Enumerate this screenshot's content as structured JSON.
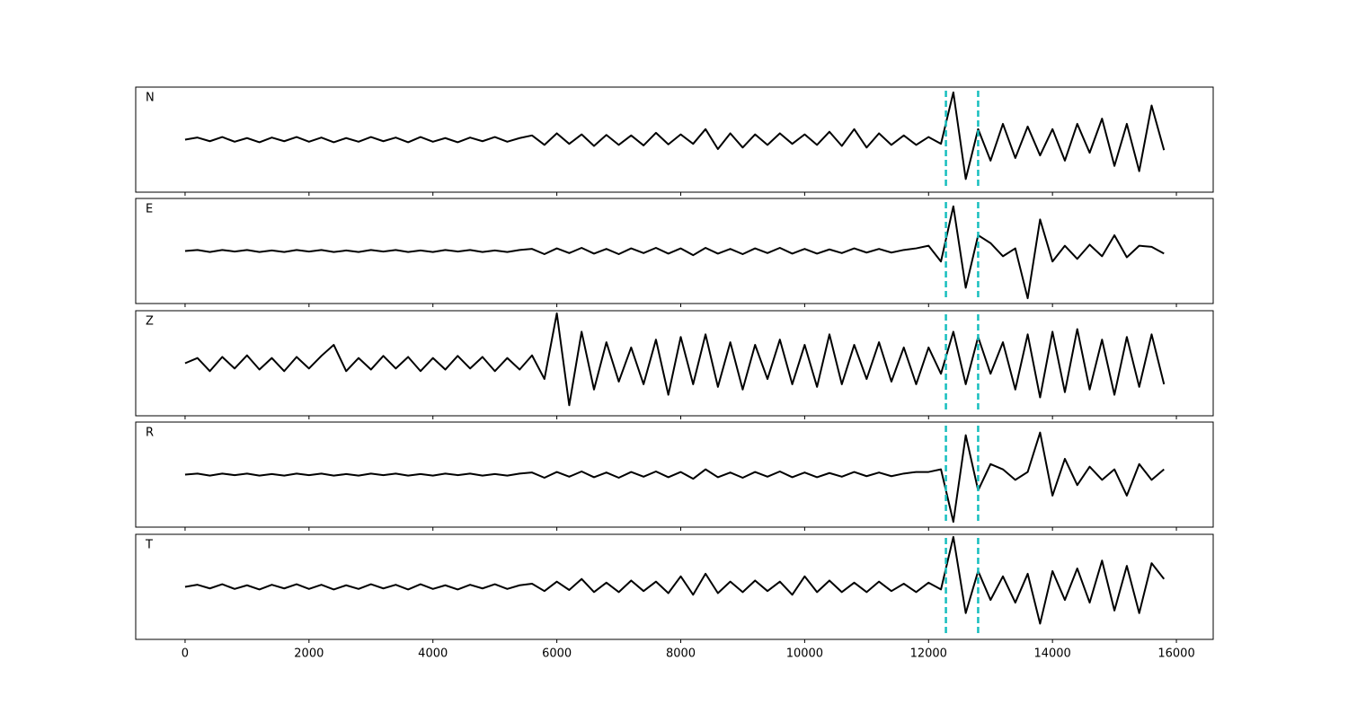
{
  "chart_data": {
    "type": "line",
    "x": [
      0,
      200,
      400,
      600,
      800,
      1000,
      1200,
      1400,
      1600,
      1800,
      2000,
      2200,
      2400,
      2600,
      2800,
      3000,
      3200,
      3400,
      3600,
      3800,
      4000,
      4200,
      4400,
      4600,
      4800,
      5000,
      5200,
      5400,
      5600,
      5800,
      6000,
      6200,
      6400,
      6600,
      6800,
      7000,
      7200,
      7400,
      7600,
      7800,
      8000,
      8200,
      8400,
      8600,
      8800,
      9000,
      9200,
      9400,
      9600,
      9800,
      10000,
      10200,
      10400,
      10600,
      10800,
      11000,
      11200,
      11400,
      11600,
      11800,
      12000,
      12200,
      12400,
      12600,
      12800,
      13000,
      13200,
      13400,
      13600,
      13800,
      14000,
      14200,
      14400,
      14600,
      14800,
      15000,
      15200,
      15400,
      15600,
      15800
    ],
    "series": [
      {
        "name": "N",
        "color": "#000000",
        "values": [
          0,
          0.04,
          -0.03,
          0.05,
          -0.04,
          0.03,
          -0.05,
          0.04,
          -0.03,
          0.05,
          -0.04,
          0.04,
          -0.05,
          0.03,
          -0.04,
          0.05,
          -0.03,
          0.04,
          -0.05,
          0.05,
          -0.04,
          0.03,
          -0.05,
          0.04,
          -0.03,
          0.05,
          -0.04,
          0.03,
          0.08,
          -0.1,
          0.12,
          -0.08,
          0.1,
          -0.12,
          0.09,
          -0.1,
          0.08,
          -0.11,
          0.13,
          -0.09,
          0.1,
          -0.08,
          0.2,
          -0.18,
          0.12,
          -0.15,
          0.1,
          -0.1,
          0.12,
          -0.08,
          0.1,
          -0.1,
          0.15,
          -0.12,
          0.2,
          -0.15,
          0.12,
          -0.1,
          0.08,
          -0.1,
          0.05,
          -0.08,
          0.9,
          -0.75,
          0.2,
          -0.4,
          0.3,
          -0.35,
          0.25,
          -0.3,
          0.2,
          -0.4,
          0.3,
          -0.25,
          0.4,
          -0.5,
          0.3,
          -0.6,
          0.65,
          -0.2
        ]
      },
      {
        "name": "E",
        "color": "#000000",
        "values": [
          0,
          0.02,
          -0.02,
          0.02,
          -0.01,
          0.02,
          -0.02,
          0.01,
          -0.02,
          0.02,
          -0.01,
          0.02,
          -0.02,
          0.01,
          -0.02,
          0.02,
          -0.01,
          0.02,
          -0.02,
          0.01,
          -0.02,
          0.02,
          -0.01,
          0.02,
          -0.02,
          0.01,
          -0.02,
          0.02,
          0.04,
          -0.06,
          0.05,
          -0.04,
          0.06,
          -0.05,
          0.04,
          -0.06,
          0.05,
          -0.04,
          0.06,
          -0.05,
          0.05,
          -0.08,
          0.06,
          -0.05,
          0.04,
          -0.06,
          0.05,
          -0.04,
          0.06,
          -0.05,
          0.04,
          -0.05,
          0.03,
          -0.04,
          0.05,
          -0.03,
          0.04,
          -0.03,
          0.02,
          0.05,
          0.1,
          -0.2,
          0.85,
          -0.7,
          0.3,
          0.15,
          -0.1,
          0.05,
          -0.9,
          0.6,
          -0.2,
          0.1,
          -0.15,
          0.12,
          -0.1,
          0.3,
          -0.12,
          0.1,
          0.08,
          -0.05
        ]
      },
      {
        "name": "Z",
        "color": "#000000",
        "values": [
          0,
          0.1,
          -0.15,
          0.12,
          -0.1,
          0.15,
          -0.12,
          0.1,
          -0.15,
          0.12,
          -0.1,
          0.14,
          0.35,
          -0.15,
          0.1,
          -0.12,
          0.14,
          -0.1,
          0.12,
          -0.15,
          0.1,
          -0.12,
          0.14,
          -0.1,
          0.12,
          -0.15,
          0.1,
          -0.12,
          0.15,
          -0.3,
          0.95,
          -0.8,
          0.6,
          -0.5,
          0.4,
          -0.35,
          0.3,
          -0.4,
          0.45,
          -0.6,
          0.5,
          -0.4,
          0.55,
          -0.45,
          0.4,
          -0.5,
          0.35,
          -0.3,
          0.45,
          -0.4,
          0.35,
          -0.45,
          0.55,
          -0.4,
          0.35,
          -0.3,
          0.4,
          -0.35,
          0.3,
          -0.4,
          0.3,
          -0.2,
          0.6,
          -0.4,
          0.5,
          -0.2,
          0.4,
          -0.5,
          0.55,
          -0.65,
          0.6,
          -0.55,
          0.65,
          -0.5,
          0.45,
          -0.6,
          0.5,
          -0.45,
          0.55,
          -0.4
        ]
      },
      {
        "name": "R",
        "color": "#000000",
        "values": [
          0,
          0.02,
          -0.02,
          0.02,
          -0.01,
          0.02,
          -0.02,
          0.01,
          -0.02,
          0.02,
          -0.01,
          0.02,
          -0.02,
          0.01,
          -0.02,
          0.02,
          -0.01,
          0.02,
          -0.02,
          0.01,
          -0.02,
          0.02,
          -0.01,
          0.02,
          -0.02,
          0.01,
          -0.02,
          0.02,
          0.04,
          -0.06,
          0.05,
          -0.04,
          0.06,
          -0.05,
          0.04,
          -0.06,
          0.05,
          -0.04,
          0.06,
          -0.05,
          0.05,
          -0.08,
          0.1,
          -0.05,
          0.04,
          -0.06,
          0.05,
          -0.04,
          0.06,
          -0.05,
          0.04,
          -0.05,
          0.03,
          -0.04,
          0.05,
          -0.03,
          0.04,
          -0.03,
          0.02,
          0.05,
          0.05,
          0.1,
          -0.9,
          0.75,
          -0.3,
          0.2,
          0.1,
          -0.1,
          0.05,
          0.8,
          -0.4,
          0.3,
          -0.2,
          0.15,
          -0.1,
          0.1,
          -0.4,
          0.2,
          -0.1,
          0.1
        ]
      },
      {
        "name": "T",
        "color": "#000000",
        "values": [
          0,
          0.04,
          -0.03,
          0.05,
          -0.04,
          0.03,
          -0.05,
          0.04,
          -0.03,
          0.05,
          -0.04,
          0.04,
          -0.05,
          0.03,
          -0.04,
          0.05,
          -0.03,
          0.04,
          -0.05,
          0.05,
          -0.04,
          0.03,
          -0.05,
          0.04,
          -0.03,
          0.05,
          -0.04,
          0.03,
          0.06,
          -0.08,
          0.1,
          -0.06,
          0.15,
          -0.1,
          0.08,
          -0.1,
          0.12,
          -0.08,
          0.1,
          -0.12,
          0.2,
          -0.15,
          0.25,
          -0.12,
          0.1,
          -0.1,
          0.12,
          -0.08,
          0.1,
          -0.15,
          0.2,
          -0.1,
          0.12,
          -0.1,
          0.08,
          -0.1,
          0.1,
          -0.08,
          0.06,
          -0.1,
          0.08,
          -0.05,
          0.95,
          -0.5,
          0.3,
          -0.25,
          0.2,
          -0.3,
          0.25,
          -0.7,
          0.3,
          -0.25,
          0.35,
          -0.3,
          0.5,
          -0.45,
          0.4,
          -0.5,
          0.45,
          0.15
        ]
      }
    ],
    "xlim": [
      -797,
      16594
    ],
    "xticks": [
      0,
      2000,
      4000,
      6000,
      8000,
      10000,
      12000,
      14000,
      16000
    ],
    "ylim": [
      -1,
      1
    ],
    "vlines": [
      12280,
      12800
    ],
    "vline_color": "#17bebe"
  }
}
